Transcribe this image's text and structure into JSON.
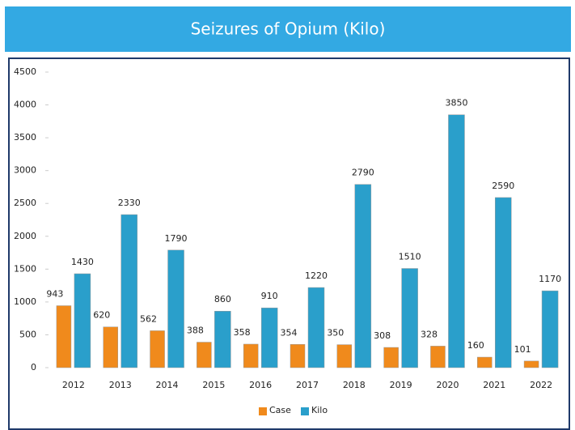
{
  "chart_data": {
    "type": "bar",
    "title": "Seizures of Opium (Kilo)",
    "categories": [
      "2012",
      "2013",
      "2014",
      "2015",
      "2016",
      "2017",
      "2018",
      "2019",
      "2020",
      "2021",
      "2022"
    ],
    "series": [
      {
        "name": "Case",
        "color": "#f08a1c",
        "values": [
          943,
          620,
          562,
          388,
          358,
          354,
          350,
          308,
          328,
          160,
          101
        ]
      },
      {
        "name": "Kilo",
        "color": "#2a9fcb",
        "values": [
          1430,
          2330,
          1790,
          860,
          910,
          1220,
          2790,
          1510,
          3850,
          2590,
          1170
        ]
      }
    ],
    "ylim": [
      0,
      4500
    ],
    "yticks": [
      0,
      500,
      1000,
      1500,
      2000,
      2500,
      3000,
      3500,
      4000,
      4500
    ],
    "legend": "bottom"
  }
}
